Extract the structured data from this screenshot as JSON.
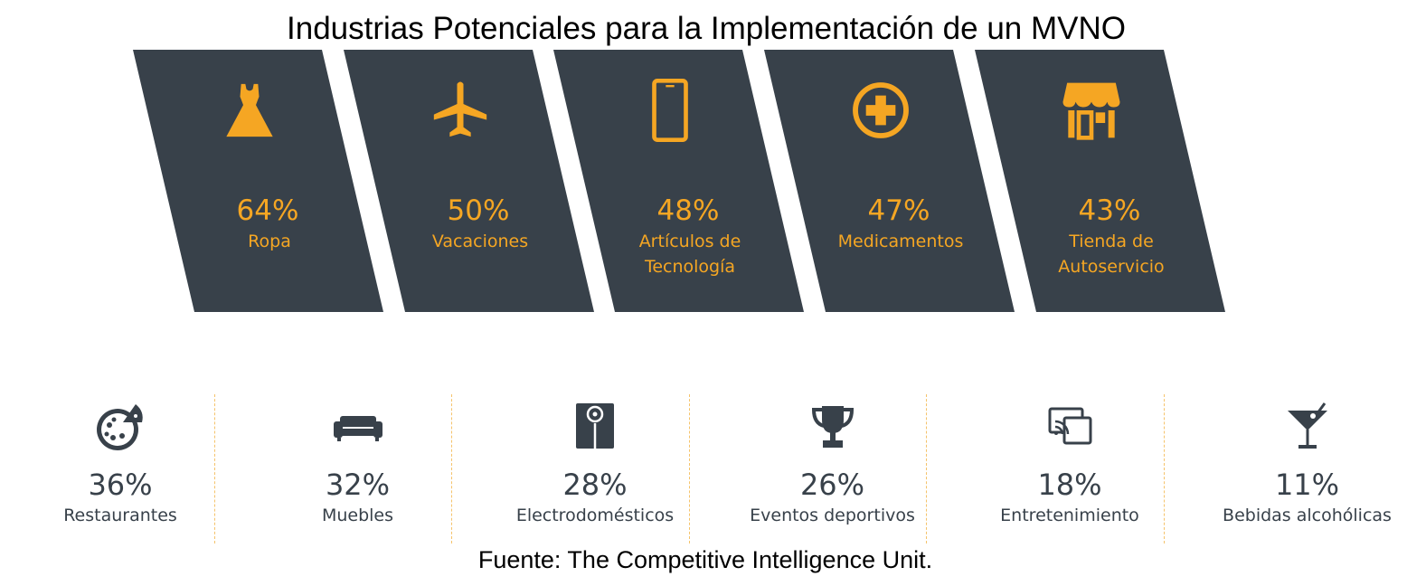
{
  "title": "Industrias Potenciales para la Implementación de un MVNO",
  "source": "Fuente: The Competitive Intelligence Unit.",
  "colors": {
    "card_bg": "#38414a",
    "accent": "#f5a623",
    "text_dark": "#38414a",
    "divider": "#f5c36b"
  },
  "chart_data": {
    "type": "table",
    "unit": "%",
    "categories": [
      "Ropa",
      "Vacaciones",
      "Artículos de Tecnología",
      "Medicamentos",
      "Tienda de Autoservicio",
      "Restaurantes",
      "Muebles",
      "Electrodomésticos",
      "Eventos deportivos",
      "Entretenimiento",
      "Bebidas alcohólicas"
    ],
    "values": [
      64,
      50,
      48,
      47,
      43,
      36,
      32,
      28,
      26,
      18,
      11
    ],
    "top": [
      {
        "value_label": "64%",
        "label_lines": [
          "Ropa"
        ],
        "icon": "dress-icon"
      },
      {
        "value_label": "50%",
        "label_lines": [
          "Vacaciones"
        ],
        "icon": "airplane-icon"
      },
      {
        "value_label": "48%",
        "label_lines": [
          "Artículos de",
          "Tecnología"
        ],
        "icon": "smartphone-icon"
      },
      {
        "value_label": "47%",
        "label_lines": [
          "Medicamentos"
        ],
        "icon": "medical-cross-icon"
      },
      {
        "value_label": "43%",
        "label_lines": [
          "Tienda de",
          "Autoservicio"
        ],
        "icon": "storefront-icon"
      }
    ],
    "bottom": [
      {
        "value_label": "36%",
        "label": "Restaurantes",
        "icon": "pizza-icon"
      },
      {
        "value_label": "32%",
        "label": "Muebles",
        "icon": "sofa-icon"
      },
      {
        "value_label": "28%",
        "label": "Electrodomésticos",
        "icon": "appliance-icon"
      },
      {
        "value_label": "26%",
        "label": "Eventos deportivos",
        "icon": "trophy-icon"
      },
      {
        "value_label": "18%",
        "label": "Entretenimiento",
        "icon": "screen-cast-icon"
      },
      {
        "value_label": "11%",
        "label": "Bebidas alcohólicas",
        "icon": "cocktail-icon"
      }
    ]
  }
}
